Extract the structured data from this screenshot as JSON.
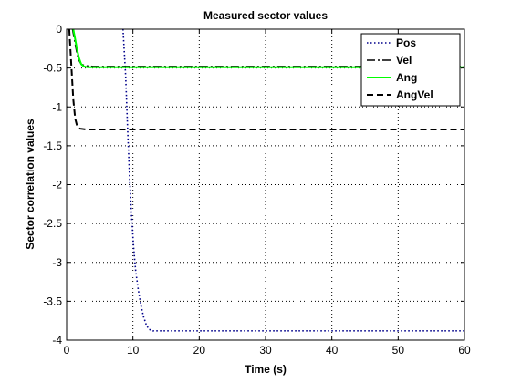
{
  "chart_data": {
    "type": "line",
    "title": "Measured sector values",
    "xlabel": "Time (s)",
    "ylabel": "Sector correlation values",
    "xlim": [
      0,
      60
    ],
    "ylim": [
      -4,
      0
    ],
    "xticks": [
      0,
      10,
      20,
      30,
      40,
      50,
      60
    ],
    "xtick_labels": [
      "0",
      "10",
      "20",
      "30",
      "40",
      "50",
      "60"
    ],
    "yticks": [
      0,
      -0.5,
      -1,
      -1.5,
      -2,
      -2.5,
      -3,
      -3.5,
      -4
    ],
    "ytick_labels": [
      "0",
      "-0.5",
      "-1",
      "-1.5",
      "-2",
      "-2.5",
      "-3",
      "-3.5",
      "-4"
    ],
    "grid": true,
    "legend_position": "top-right",
    "series": [
      {
        "name": "Pos",
        "color": "#00008b",
        "style": "dotted",
        "x": [
          8.5,
          8.9,
          9.2,
          9.5,
          9.8,
          10.1,
          10.4,
          10.8,
          11.2,
          11.6,
          12.0,
          12.4,
          13.0,
          20,
          30,
          40,
          50,
          60
        ],
        "y": [
          0,
          -0.6,
          -1.3,
          -1.9,
          -2.4,
          -2.8,
          -3.1,
          -3.35,
          -3.55,
          -3.7,
          -3.8,
          -3.86,
          -3.88,
          -3.88,
          -3.88,
          -3.88,
          -3.88,
          -3.88
        ]
      },
      {
        "name": "Vel",
        "color": "#000000",
        "style": "dashdot",
        "x": [
          0.9,
          1.2,
          1.5,
          1.8,
          2.2,
          2.8,
          4,
          10,
          20,
          30,
          40,
          50,
          60
        ],
        "y": [
          0,
          -0.14,
          -0.28,
          -0.39,
          -0.45,
          -0.47,
          -0.48,
          -0.48,
          -0.48,
          -0.48,
          -0.48,
          -0.48,
          -0.48
        ]
      },
      {
        "name": "Ang",
        "color": "#00ff00",
        "style": "solid",
        "x": [
          1.0,
          1.3,
          1.6,
          1.9,
          2.2,
          2.6,
          3.2,
          10,
          20,
          30,
          40,
          50,
          60
        ],
        "y": [
          0,
          -0.13,
          -0.27,
          -0.38,
          -0.45,
          -0.48,
          -0.49,
          -0.49,
          -0.49,
          -0.49,
          -0.49,
          -0.49,
          -0.49
        ]
      },
      {
        "name": "AngVel",
        "color": "#000000",
        "style": "dashed",
        "x": [
          0.4,
          0.7,
          1.0,
          1.3,
          1.6,
          2.0,
          3.0,
          10,
          20,
          30,
          40,
          50,
          60
        ],
        "y": [
          0,
          -0.45,
          -0.9,
          -1.15,
          -1.25,
          -1.28,
          -1.29,
          -1.29,
          -1.29,
          -1.29,
          -1.29,
          -1.29,
          -1.29
        ]
      }
    ]
  }
}
